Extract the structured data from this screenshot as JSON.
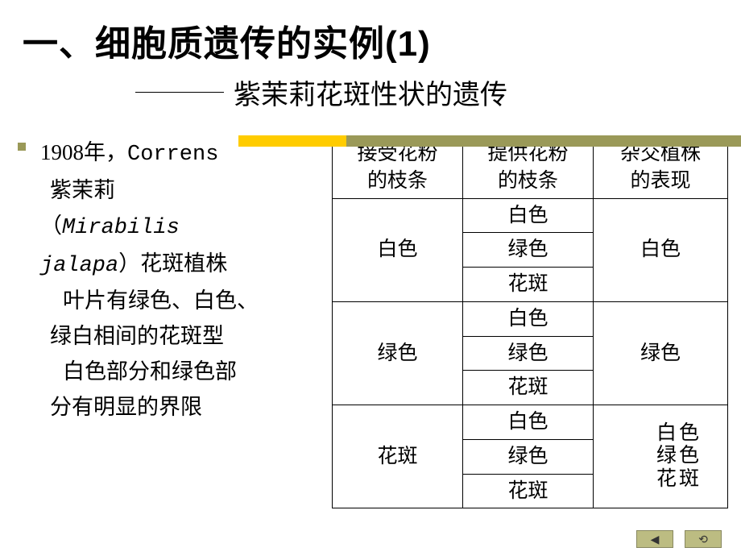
{
  "title": "一、细胞质遗传的实例(1)",
  "subtitle": "紫茉莉花斑性状的遗传",
  "colors": {
    "accent_yellow": "#ffcc00",
    "accent_olive": "#9a9958",
    "nav_bg": "#bcbc82",
    "nav_border": "#888860",
    "text": "#000000",
    "background": "#ffffff"
  },
  "left": {
    "line1a": "1908年，",
    "line1b": "Correns",
    "line2": "紫茉莉",
    "line3a": "（",
    "line3b": "Mirabilis",
    "line4a": "jalapa",
    "line4b": "）花斑植株",
    "line5": "叶片有绿色、白色、",
    "line6": "绿白相间的花斑型",
    "line7": "白色部分和绿色部",
    "line8": "分有明显的界限"
  },
  "table": {
    "headers": [
      "接受花粉\n的枝条",
      "提供花粉\n的枝条",
      "杂交植株\n的表现"
    ],
    "col_widths": [
      "33%",
      "33%",
      "34%"
    ],
    "groups": [
      {
        "recv": "白色",
        "donors": [
          "白色",
          "绿色",
          "花斑"
        ],
        "result_type": "single",
        "result": "白色"
      },
      {
        "recv": "绿色",
        "donors": [
          "白色",
          "绿色",
          "花斑"
        ],
        "result_type": "single",
        "result": "绿色"
      },
      {
        "recv": "花斑",
        "donors": [
          "白色",
          "绿色",
          "花斑"
        ],
        "result_type": "stack",
        "results": [
          "白色",
          "绿色",
          "花斑"
        ]
      }
    ]
  },
  "nav": {
    "back": "◀",
    "up": "⟲"
  }
}
